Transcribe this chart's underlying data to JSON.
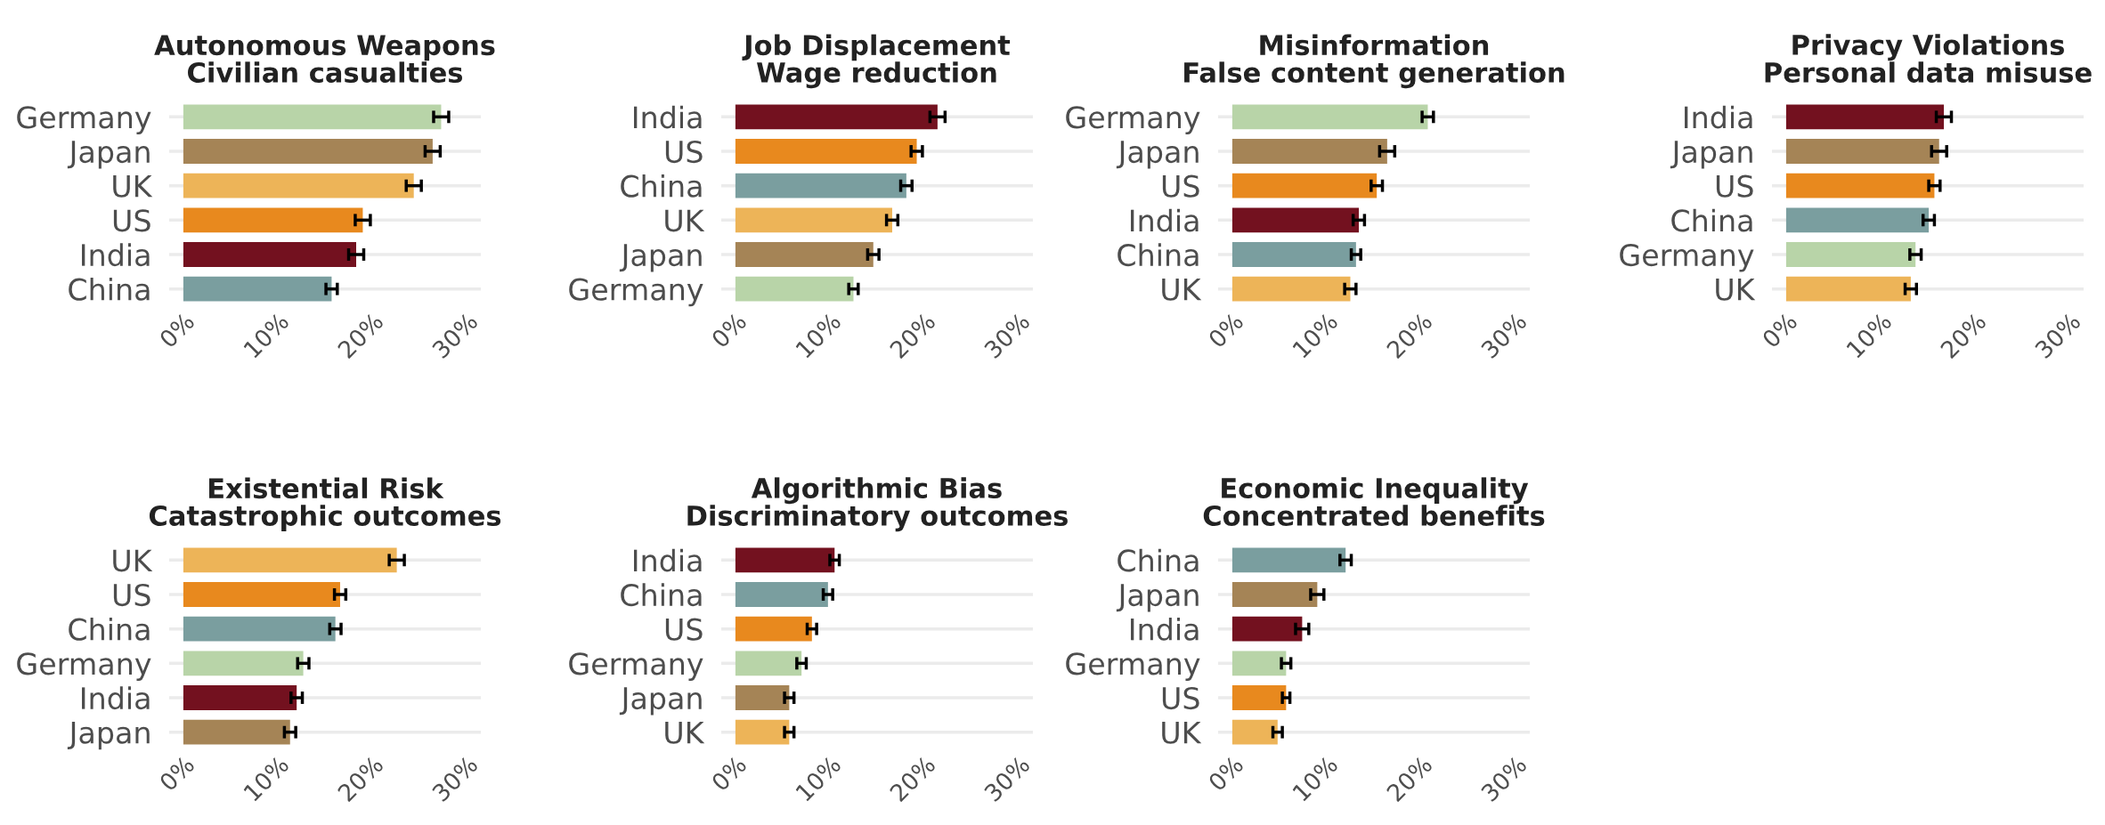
{
  "chart_data": [
    {
      "type": "bar",
      "orientation": "horizontal",
      "title": "Autonomous Weapons\nCivilian casualties",
      "categories": [
        "Germany",
        "Japan",
        "UK",
        "US",
        "India",
        "China"
      ],
      "values": [
        27.3,
        26.4,
        24.4,
        19.0,
        18.3,
        15.7
      ],
      "errors": [
        0.8,
        0.8,
        0.8,
        0.8,
        0.8,
        0.6
      ],
      "colors": [
        "#b8d4a8",
        "#a58456",
        "#edb458",
        "#e8891e",
        "#73111f",
        "#7a9e9f"
      ],
      "xlim": [
        -1.5,
        31.5
      ],
      "xticks": [
        {
          "value": 0,
          "label": "0%"
        },
        {
          "value": 10,
          "label": "10%"
        },
        {
          "value": 20,
          "label": "20%"
        },
        {
          "value": 30,
          "label": "30%"
        }
      ],
      "grid": "y"
    },
    {
      "type": "bar",
      "orientation": "horizontal",
      "title": "Job Displacement\nWage reduction",
      "categories": [
        "India",
        "US",
        "China",
        "UK",
        "Japan",
        "Germany"
      ],
      "values": [
        21.4,
        19.2,
        18.1,
        16.6,
        14.6,
        12.5
      ],
      "errors": [
        0.8,
        0.6,
        0.6,
        0.6,
        0.6,
        0.5
      ],
      "colors": [
        "#73111f",
        "#e8891e",
        "#7a9e9f",
        "#edb458",
        "#a58456",
        "#b8d4a8"
      ],
      "xlim": [
        -1.5,
        31.5
      ],
      "xticks": [
        {
          "value": 0,
          "label": "0%"
        },
        {
          "value": 10,
          "label": "10%"
        },
        {
          "value": 20,
          "label": "20%"
        },
        {
          "value": 30,
          "label": "30%"
        }
      ],
      "grid": "y"
    },
    {
      "type": "bar",
      "orientation": "horizontal",
      "title": "Misinformation\nFalse content generation",
      "categories": [
        "Germany",
        "Japan",
        "US",
        "India",
        "China",
        "UK"
      ],
      "values": [
        20.7,
        16.4,
        15.3,
        13.4,
        13.1,
        12.5
      ],
      "errors": [
        0.6,
        0.8,
        0.6,
        0.6,
        0.5,
        0.6
      ],
      "colors": [
        "#b8d4a8",
        "#a58456",
        "#e8891e",
        "#73111f",
        "#7a9e9f",
        "#edb458"
      ],
      "xlim": [
        -1.5,
        31.5
      ],
      "xticks": [
        {
          "value": 0,
          "label": "0%"
        },
        {
          "value": 10,
          "label": "10%"
        },
        {
          "value": 20,
          "label": "20%"
        },
        {
          "value": 30,
          "label": "30%"
        }
      ],
      "grid": "y"
    },
    {
      "type": "bar",
      "orientation": "horizontal",
      "title": "Privacy Violations\nPersonal data misuse",
      "categories": [
        "India",
        "Japan",
        "US",
        "China",
        "Germany",
        "UK"
      ],
      "values": [
        16.7,
        16.2,
        15.7,
        15.1,
        13.7,
        13.2
      ],
      "errors": [
        0.8,
        0.8,
        0.6,
        0.6,
        0.6,
        0.6
      ],
      "colors": [
        "#73111f",
        "#a58456",
        "#e8891e",
        "#7a9e9f",
        "#b8d4a8",
        "#edb458"
      ],
      "xlim": [
        -1.5,
        31.5
      ],
      "xticks": [
        {
          "value": 0,
          "label": "0%"
        },
        {
          "value": 10,
          "label": "10%"
        },
        {
          "value": 20,
          "label": "20%"
        },
        {
          "value": 30,
          "label": "30%"
        }
      ],
      "grid": "y"
    },
    {
      "type": "bar",
      "orientation": "horizontal",
      "title": "Existential Risk\nCatastrophic outcomes",
      "categories": [
        "UK",
        "US",
        "China",
        "Germany",
        "India",
        "Japan"
      ],
      "values": [
        22.6,
        16.6,
        16.1,
        12.7,
        12.0,
        11.3
      ],
      "errors": [
        0.8,
        0.6,
        0.6,
        0.6,
        0.6,
        0.6
      ],
      "colors": [
        "#edb458",
        "#e8891e",
        "#7a9e9f",
        "#b8d4a8",
        "#73111f",
        "#a58456"
      ],
      "xlim": [
        -1.5,
        31.5
      ],
      "xticks": [
        {
          "value": 0,
          "label": "0%"
        },
        {
          "value": 10,
          "label": "10%"
        },
        {
          "value": 20,
          "label": "20%"
        },
        {
          "value": 30,
          "label": "30%"
        }
      ],
      "grid": "y"
    },
    {
      "type": "bar",
      "orientation": "horizontal",
      "title": "Algorithmic Bias\nDiscriminatory outcomes",
      "categories": [
        "India",
        "China",
        "US",
        "Germany",
        "Japan",
        "UK"
      ],
      "values": [
        10.5,
        9.8,
        8.1,
        7.0,
        5.7,
        5.7
      ],
      "errors": [
        0.5,
        0.5,
        0.5,
        0.5,
        0.5,
        0.5
      ],
      "colors": [
        "#73111f",
        "#7a9e9f",
        "#e8891e",
        "#b8d4a8",
        "#a58456",
        "#edb458"
      ],
      "xlim": [
        -1.5,
        31.5
      ],
      "xticks": [
        {
          "value": 0,
          "label": "0%"
        },
        {
          "value": 10,
          "label": "10%"
        },
        {
          "value": 20,
          "label": "20%"
        },
        {
          "value": 30,
          "label": "30%"
        }
      ],
      "grid": "y"
    },
    {
      "type": "bar",
      "orientation": "horizontal",
      "title": "Economic Inequality\nConcentrated benefits",
      "categories": [
        "China",
        "Japan",
        "India",
        "Germany",
        "US",
        "UK"
      ],
      "values": [
        12.0,
        9.0,
        7.4,
        5.7,
        5.7,
        4.8
      ],
      "errors": [
        0.6,
        0.7,
        0.7,
        0.5,
        0.4,
        0.5
      ],
      "colors": [
        "#7a9e9f",
        "#a58456",
        "#73111f",
        "#b8d4a8",
        "#e8891e",
        "#edb458"
      ],
      "xlim": [
        -1.5,
        31.5
      ],
      "xticks": [
        {
          "value": 0,
          "label": "0%"
        },
        {
          "value": 10,
          "label": "10%"
        },
        {
          "value": 20,
          "label": "20%"
        },
        {
          "value": 30,
          "label": "30%"
        }
      ],
      "grid": "y"
    }
  ]
}
